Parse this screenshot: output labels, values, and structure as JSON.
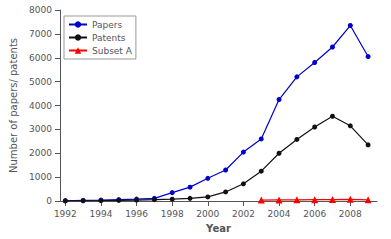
{
  "chart_data": {
    "type": "line",
    "x": [
      1992,
      1993,
      1994,
      1995,
      1996,
      1997,
      1998,
      1999,
      2000,
      2001,
      2002,
      2003,
      2004,
      2005,
      2006,
      2007,
      2008,
      2009
    ],
    "series": [
      {
        "name": "Papers",
        "color": "#0000CC",
        "marker": "circle",
        "values": [
          10,
          25,
          40,
          60,
          80,
          110,
          350,
          580,
          950,
          1300,
          2050,
          2600,
          4250,
          5200,
          5800,
          6450,
          7350,
          6050
        ]
      },
      {
        "name": "Patents",
        "color": "#111111",
        "marker": "circle",
        "values": [
          5,
          10,
          15,
          25,
          40,
          55,
          75,
          110,
          170,
          380,
          720,
          1250,
          2000,
          2580,
          3100,
          3550,
          3150,
          2350
        ]
      },
      {
        "name": "Subset A",
        "color": "#FF0000",
        "marker": "triangle",
        "x": [
          2003,
          2004,
          2005,
          2006,
          2007,
          2008,
          2009
        ],
        "values": [
          40,
          45,
          50,
          55,
          60,
          70,
          50
        ]
      }
    ],
    "xlabel": "Year",
    "ylabel": "Number of papers/ patents",
    "xlim": [
      1991.7,
      2009.5
    ],
    "xticks": [
      1992,
      1994,
      1996,
      1998,
      2000,
      2002,
      2004,
      2006,
      2008
    ],
    "ylim": [
      0,
      8000
    ],
    "yticks": [
      0,
      1000,
      2000,
      3000,
      4000,
      5000,
      6000,
      7000,
      8000
    ],
    "grid": false,
    "legend": "upper left"
  }
}
